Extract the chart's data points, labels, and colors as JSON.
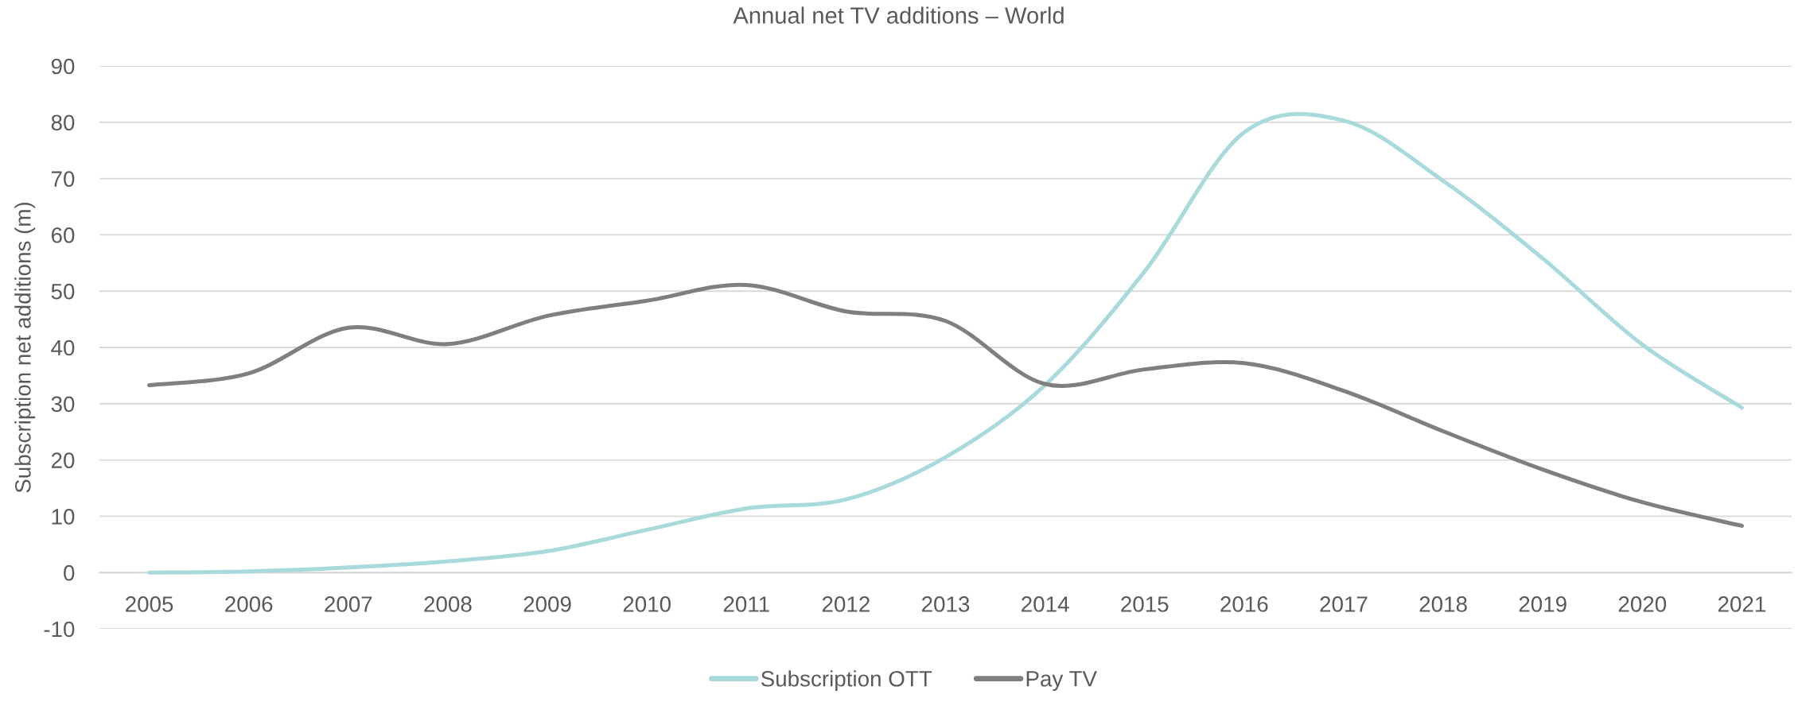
{
  "chart_data": {
    "type": "line",
    "title": "Annual net TV additions – World",
    "ylabel": "Subscription net additions (m)",
    "categories": [
      "2005",
      "2006",
      "2007",
      "2008",
      "2009",
      "2010",
      "2011",
      "2012",
      "2013",
      "2014",
      "2015",
      "2016",
      "2017",
      "2018",
      "2019",
      "2020",
      "2021"
    ],
    "series": [
      {
        "name": "Subscription OTT",
        "color": "#a8dadc",
        "values": [
          0.0,
          0.2,
          0.9,
          2.0,
          3.8,
          7.6,
          11.4,
          13.0,
          20.5,
          33.3,
          53.5,
          78.2,
          80.3,
          69.6,
          55.8,
          40.5,
          29.3
        ]
      },
      {
        "name": "Pay TV",
        "color": "#7f7f7f",
        "values": [
          33.3,
          35.4,
          43.5,
          40.6,
          45.6,
          48.3,
          51.1,
          46.4,
          44.7,
          33.5,
          36.1,
          37.2,
          32.3,
          25.1,
          18.3,
          12.5,
          8.3
        ]
      }
    ],
    "ylim": [
      -10,
      90
    ],
    "yticks": [
      -10,
      0,
      10,
      20,
      30,
      40,
      50,
      60,
      70,
      80,
      90
    ],
    "grid": "y",
    "legend": "bottom"
  }
}
